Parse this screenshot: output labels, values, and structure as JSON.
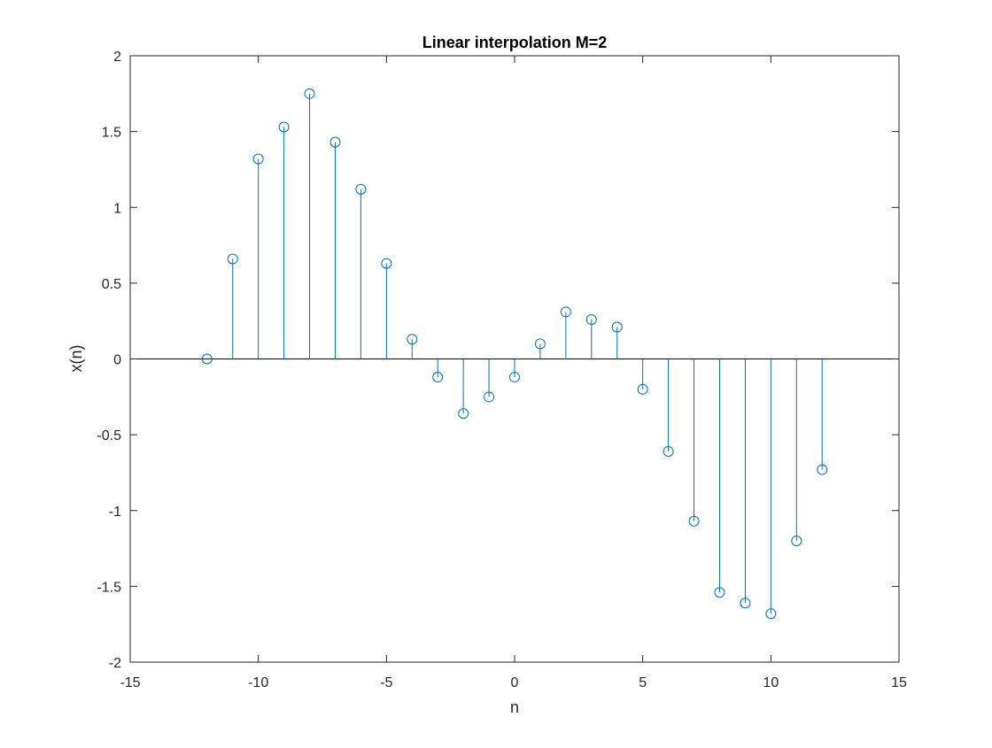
{
  "chart_data": {
    "type": "stem",
    "title": "Linear interpolation M=2",
    "xlabel": "n",
    "ylabel": "x(n)",
    "xlim": [
      -15,
      15
    ],
    "ylim": [
      -2,
      2
    ],
    "xticks": [
      -15,
      -10,
      -5,
      0,
      5,
      10,
      15
    ],
    "yticks": [
      -2,
      -1.5,
      -1,
      -0.5,
      0,
      0.5,
      1,
      1.5,
      2
    ],
    "xtick_labels": [
      "-15",
      "-10",
      "-5",
      "0",
      "5",
      "10",
      "15"
    ],
    "ytick_labels": [
      "-2",
      "-1.5",
      "-1",
      "-0.5",
      "0",
      "0.5",
      "1",
      "1.5",
      "2"
    ],
    "grid": false,
    "color": "#0072bd",
    "x": [
      -12,
      -11,
      -10,
      -9,
      -8,
      -7,
      -6,
      -5,
      -4,
      -3,
      -2,
      -1,
      0,
      1,
      2,
      3,
      4,
      5,
      6,
      7,
      8,
      9,
      10,
      11,
      12
    ],
    "y": [
      0,
      0.66,
      1.32,
      1.53,
      1.75,
      1.43,
      1.12,
      0.63,
      0.13,
      -0.12,
      -0.36,
      -0.25,
      -0.12,
      0.1,
      0.31,
      0.26,
      0.21,
      -0.2,
      -0.61,
      -1.07,
      -1.54,
      -1.61,
      -1.68,
      -1.2,
      -0.73
    ]
  }
}
